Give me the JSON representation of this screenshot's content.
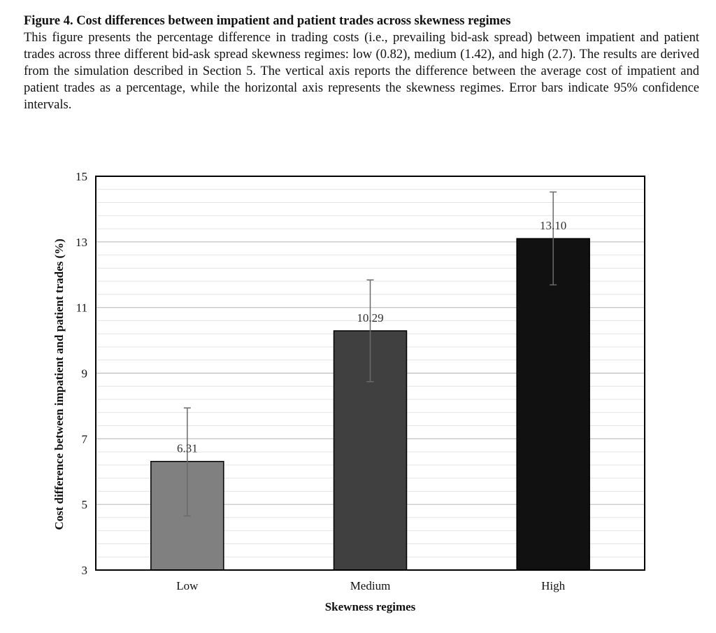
{
  "caption": {
    "title": "Figure 4. Cost differences between impatient and patient trades across skewness regimes",
    "body": "This figure presents the percentage difference in trading costs (i.e., prevailing bid-ask spread) between impatient and patient trades across three different bid-ask spread skewness regimes: low (0.82), medium (1.42), and high (2.7). The results are derived from the simulation described in Section 5. The vertical axis reports the difference between the average cost of impatient and patient trades as a percentage, while the horizontal axis represents the skewness regimes. Error bars indicate 95% confidence intervals."
  },
  "chart_data": {
    "type": "bar",
    "title": "",
    "xlabel": "Skewness regimes",
    "ylabel": "Cost difference between impatient and patient trades (%)",
    "categories": [
      "Low",
      "Medium",
      "High"
    ],
    "values": [
      6.31,
      10.29,
      13.1
    ],
    "value_labels": [
      "6.31",
      "10.29",
      "13.10"
    ],
    "error_low": [
      4.65,
      8.74,
      11.69
    ],
    "error_high": [
      7.94,
      11.84,
      14.52
    ],
    "bar_colors": [
      "#808080",
      "#404040",
      "#111111"
    ],
    "ylim": [
      3,
      15
    ],
    "yticks": [
      3,
      5,
      7,
      9,
      11,
      13,
      15
    ],
    "minor_grid_step": 0.4,
    "grid": true,
    "legend": "none"
  }
}
